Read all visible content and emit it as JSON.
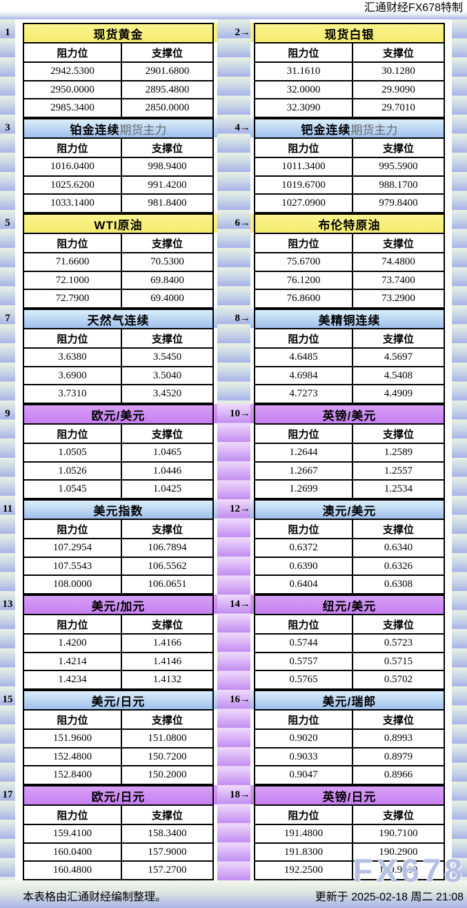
{
  "page": {
    "topbar_brand": "汇通财经FX678特制",
    "footer_note": "本表格由汇通财经编制整理。",
    "footer_updated": "更新于 2025-02-18 周二 21:08",
    "watermark": "FX678"
  },
  "colors": {
    "header_yellow": "#f7f17c",
    "header_blue_top": "#dbeffb",
    "header_blue_bottom": "#9fc0ec",
    "header_purple_top": "#d8a0f6",
    "header_purple_bottom": "#c67ff0",
    "stripe_green_top": "#e9f1e3",
    "stripe_blue_bottom": "#a8b2e8",
    "stripe_purple_top": "#efdbfb",
    "stripe_purple_bottom": "#c18df0"
  },
  "chart_data": {
    "type": "table",
    "columns": [
      "阻力位",
      "支撑位"
    ],
    "tables": [
      {
        "label": "1",
        "title": "现货黄金",
        "suffix": "",
        "theme": "yellow",
        "rows": [
          [
            "2942.5300",
            "2901.6800"
          ],
          [
            "2950.0000",
            "2895.4800"
          ],
          [
            "2985.3400",
            "2850.0000"
          ]
        ]
      },
      {
        "label": "2→",
        "title": "现货白银",
        "suffix": "",
        "theme": "yellow",
        "rows": [
          [
            "31.1610",
            "30.1280"
          ],
          [
            "32.0000",
            "29.9090"
          ],
          [
            "32.3090",
            "29.7010"
          ]
        ]
      },
      {
        "label": "3",
        "title": "铂金连续",
        "suffix": "期货主力",
        "theme": "blue",
        "rows": [
          [
            "1016.0400",
            "998.9400"
          ],
          [
            "1025.6200",
            "991.4200"
          ],
          [
            "1033.1400",
            "981.8400"
          ]
        ]
      },
      {
        "label": "4→",
        "title": "钯金连续",
        "suffix": "期货主力",
        "theme": "blue",
        "rows": [
          [
            "1011.3400",
            "995.5900"
          ],
          [
            "1019.6700",
            "988.1700"
          ],
          [
            "1027.0900",
            "979.8400"
          ]
        ]
      },
      {
        "label": "5",
        "title": "WTI原油",
        "suffix": "",
        "theme": "yellow",
        "rows": [
          [
            "71.6600",
            "70.5300"
          ],
          [
            "72.1000",
            "69.8400"
          ],
          [
            "72.7900",
            "69.4000"
          ]
        ]
      },
      {
        "label": "6→",
        "title": "布伦特原油",
        "suffix": "",
        "theme": "yellow",
        "rows": [
          [
            "75.6700",
            "74.4800"
          ],
          [
            "76.1200",
            "73.7400"
          ],
          [
            "76.8600",
            "73.2900"
          ]
        ]
      },
      {
        "label": "7",
        "title": "天然气连续",
        "suffix": "",
        "theme": "blue",
        "rows": [
          [
            "3.6380",
            "3.5450"
          ],
          [
            "3.6900",
            "3.5040"
          ],
          [
            "3.7310",
            "3.4520"
          ]
        ]
      },
      {
        "label": "8→",
        "title": "美精铜连续",
        "suffix": "",
        "theme": "blue",
        "rows": [
          [
            "4.6485",
            "4.5697"
          ],
          [
            "4.6984",
            "4.5408"
          ],
          [
            "4.7273",
            "4.4909"
          ]
        ]
      },
      {
        "label": "9",
        "title": "欧元/美元",
        "suffix": "",
        "theme": "purple",
        "rows": [
          [
            "1.0505",
            "1.0465"
          ],
          [
            "1.0526",
            "1.0446"
          ],
          [
            "1.0545",
            "1.0425"
          ]
        ]
      },
      {
        "label": "10→",
        "title": "英镑/美元",
        "suffix": "",
        "theme": "purple",
        "rows": [
          [
            "1.2644",
            "1.2589"
          ],
          [
            "1.2667",
            "1.2557"
          ],
          [
            "1.2699",
            "1.2534"
          ]
        ]
      },
      {
        "label": "11",
        "title": "美元指数",
        "suffix": "",
        "theme": "blue",
        "rows": [
          [
            "107.2954",
            "106.7894"
          ],
          [
            "107.5543",
            "106.5562"
          ],
          [
            "108.0000",
            "106.0651"
          ]
        ]
      },
      {
        "label": "12→",
        "title": "澳元/美元",
        "suffix": "",
        "theme": "blue",
        "rows": [
          [
            "0.6372",
            "0.6340"
          ],
          [
            "0.6390",
            "0.6326"
          ],
          [
            "0.6404",
            "0.6308"
          ]
        ]
      },
      {
        "label": "13",
        "title": "美元/加元",
        "suffix": "",
        "theme": "purple",
        "rows": [
          [
            "1.4200",
            "1.4166"
          ],
          [
            "1.4214",
            "1.4146"
          ],
          [
            "1.4234",
            "1.4132"
          ]
        ]
      },
      {
        "label": "14→",
        "title": "纽元/美元",
        "suffix": "",
        "theme": "purple",
        "rows": [
          [
            "0.5744",
            "0.5723"
          ],
          [
            "0.5757",
            "0.5715"
          ],
          [
            "0.5765",
            "0.5702"
          ]
        ]
      },
      {
        "label": "15",
        "title": "美元/日元",
        "suffix": "",
        "theme": "blue",
        "rows": [
          [
            "151.9600",
            "151.0800"
          ],
          [
            "152.4800",
            "150.7200"
          ],
          [
            "152.8400",
            "150.2000"
          ]
        ]
      },
      {
        "label": "16→",
        "title": "美元/瑞郎",
        "suffix": "",
        "theme": "blue",
        "rows": [
          [
            "0.9020",
            "0.8993"
          ],
          [
            "0.9033",
            "0.8979"
          ],
          [
            "0.9047",
            "0.8966"
          ]
        ]
      },
      {
        "label": "17",
        "title": "欧元/日元",
        "suffix": "",
        "theme": "purple",
        "rows": [
          [
            "159.4100",
            "158.3400"
          ],
          [
            "160.0400",
            "157.9000"
          ],
          [
            "160.4800",
            "157.2700"
          ]
        ]
      },
      {
        "label": "18→",
        "title": "英镑/日元",
        "suffix": "",
        "theme": "purple",
        "rows": [
          [
            "191.4800",
            "190.7100"
          ],
          [
            "191.8300",
            "190.2900"
          ],
          [
            "192.2500",
            "189.9400"
          ]
        ]
      }
    ]
  }
}
